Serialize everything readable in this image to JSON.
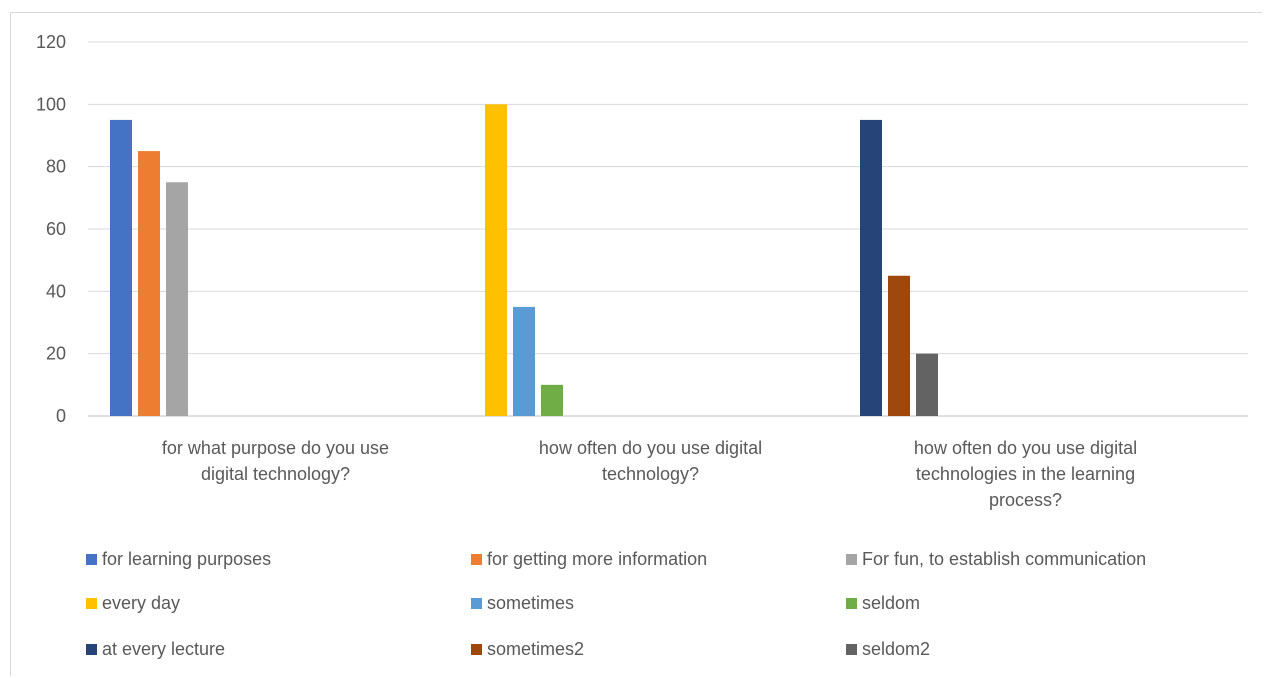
{
  "chart_data": {
    "type": "bar",
    "categories": [
      [
        "for what purpose do you use",
        "digital technology?"
      ],
      [
        "how often do you use digital",
        "technology?"
      ],
      [
        "how often do you use digital",
        "technologies in the learning",
        "process?"
      ]
    ],
    "ylim": [
      0,
      120
    ],
    "yticks": [
      0,
      20,
      40,
      60,
      80,
      100,
      120
    ],
    "grid": true,
    "legend_position": "bottom",
    "series": [
      {
        "name": "for learning purposes",
        "color": "#4472c4",
        "category": 0,
        "slot": 0,
        "value": 95
      },
      {
        "name": "for getting more information",
        "color": "#ed7d31",
        "category": 0,
        "slot": 1,
        "value": 85
      },
      {
        "name": "For fun, to establish communication",
        "color": "#a5a5a5",
        "category": 0,
        "slot": 2,
        "value": 75
      },
      {
        "name": "every day",
        "color": "#ffc000",
        "category": 1,
        "slot": 0,
        "value": 100
      },
      {
        "name": "sometimes",
        "color": "#5b9bd5",
        "category": 1,
        "slot": 1,
        "value": 35
      },
      {
        "name": "seldom",
        "color": "#70ad47",
        "category": 1,
        "slot": 2,
        "value": 10
      },
      {
        "name": "at every lecture",
        "color": "#264478",
        "category": 2,
        "slot": 0,
        "value": 95
      },
      {
        "name": "sometimes2",
        "color": "#9e480e",
        "category": 2,
        "slot": 1,
        "value": 45
      },
      {
        "name": "seldom2",
        "color": "#636363",
        "category": 2,
        "slot": 2,
        "value": 20
      }
    ]
  }
}
